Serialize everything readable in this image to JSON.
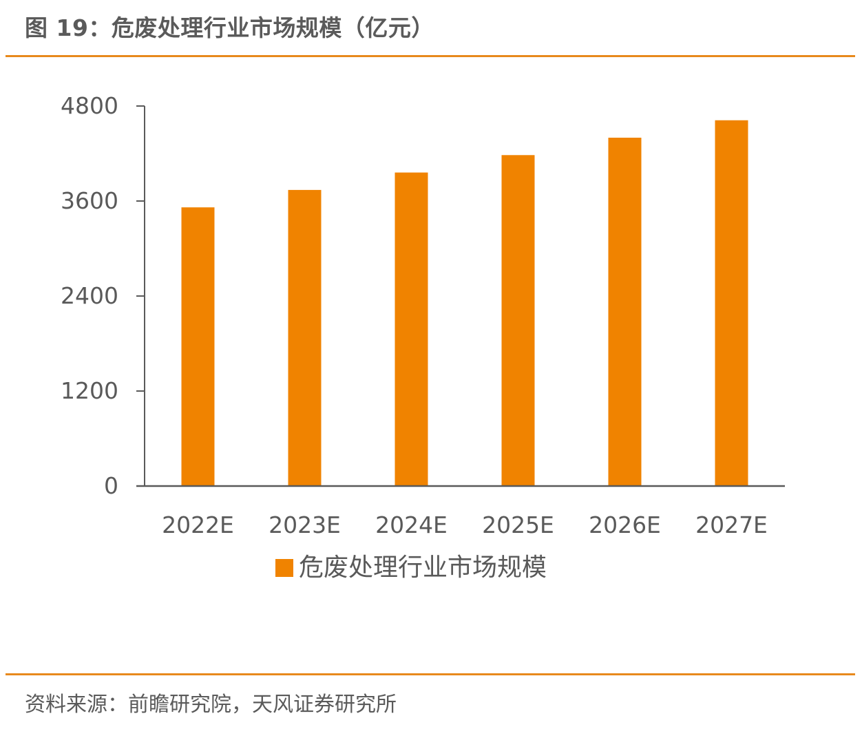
{
  "figure": {
    "title": "图 19：危废处理行业市场规模（亿元）",
    "source": "资料来源：前瞻研究院，天风证券研究所"
  },
  "colors": {
    "accent": "#e8891c",
    "bar": "#f08300",
    "axis": "#595959",
    "text": "#595959"
  },
  "chart_data": {
    "type": "bar",
    "title": "",
    "xlabel": "",
    "ylabel": "",
    "categories": [
      "2022E",
      "2023E",
      "2024E",
      "2025E",
      "2026E",
      "2027E"
    ],
    "series": [
      {
        "name": "危废处理行业市场规模",
        "values": [
          3520,
          3740,
          3960,
          4180,
          4400,
          4620
        ]
      }
    ],
    "ylim": [
      0,
      4800
    ],
    "yticks": [
      0,
      1200,
      2400,
      3600,
      4800
    ],
    "grid": false,
    "legend": "bottom"
  }
}
